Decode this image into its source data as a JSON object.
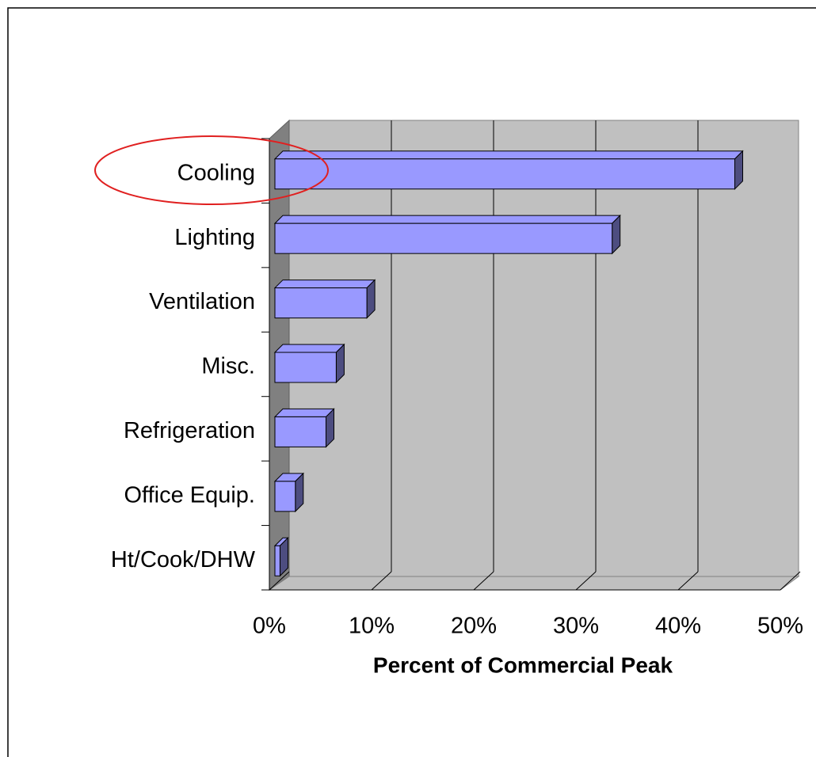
{
  "chart_data": {
    "type": "bar3d_horizontal",
    "x_label": "Percent of Commercial Peak",
    "categories": [
      "Cooling",
      "Lighting",
      "Ventilation",
      "Misc.",
      "Refrigeration",
      "Office Equip.",
      "Ht/Cook/DHW"
    ],
    "values": [
      45,
      33,
      9,
      6,
      5,
      2,
      0.5
    ],
    "color": "#9999ff",
    "xlim": [
      0,
      50
    ],
    "xticks": [
      {
        "value": 0,
        "label": "0%"
      },
      {
        "value": 10,
        "label": "10%"
      },
      {
        "value": 20,
        "label": "20%"
      },
      {
        "value": 30,
        "label": "30%"
      },
      {
        "value": 40,
        "label": "40%"
      },
      {
        "value": 50,
        "label": "50%"
      }
    ],
    "grid": true
  }
}
